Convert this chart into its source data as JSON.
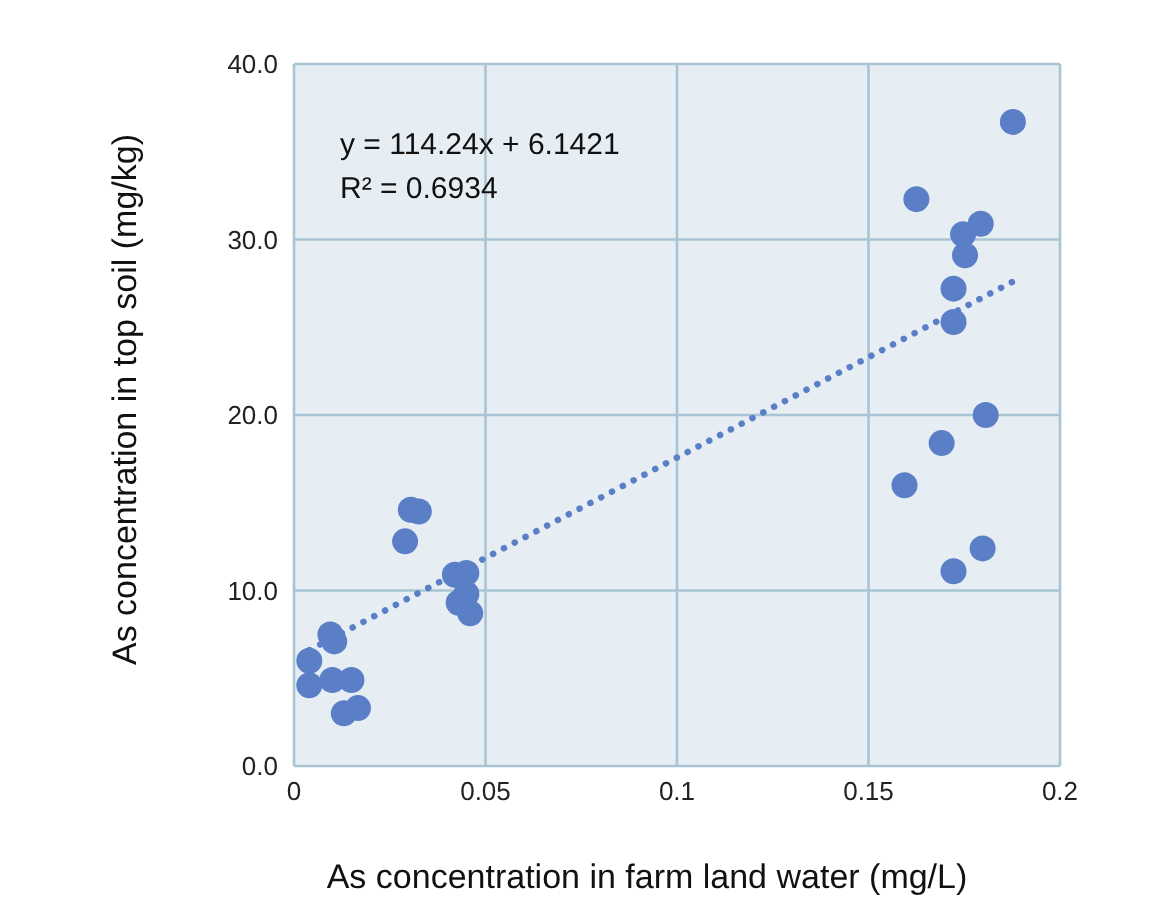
{
  "chart_data": {
    "type": "scatter",
    "xlabel": "As concentration in farm land water (mg/L)",
    "ylabel": "As concentration in top soil (mg/kg)",
    "xlim": [
      0,
      0.2
    ],
    "xticks": [
      0,
      0.05,
      0.1,
      0.15,
      0.2
    ],
    "ylim": [
      0,
      40
    ],
    "yticks": [
      {
        "value": 0,
        "label": "0.0"
      },
      {
        "value": 10,
        "label": "10.0"
      },
      {
        "value": 20,
        "label": "20.0"
      },
      {
        "value": 30,
        "label": "30.0"
      },
      {
        "value": 40,
        "label": "40.0"
      }
    ],
    "grid": true,
    "marker": "circle",
    "annotations": [
      "y = 114.24x + 6.1421",
      "R² = 0.6934"
    ],
    "series": [
      {
        "color": "#5b7fc7",
        "x": [
          0.0305,
          0.0326,
          0.029,
          0.042,
          0.045,
          0.045,
          0.043,
          0.046,
          0.0095,
          0.0105,
          0.004,
          0.004,
          0.01,
          0.015,
          0.013,
          0.0167,
          0.1877,
          0.1625,
          0.1793,
          0.1747,
          0.1752,
          0.1722,
          0.1722,
          0.1806,
          0.1691,
          0.1594,
          0.1798,
          0.1722
        ],
        "values": [
          14.6,
          14.5,
          12.8,
          10.9,
          11.0,
          9.8,
          9.3,
          8.7,
          7.5,
          7.1,
          6.0,
          4.6,
          4.9,
          4.9,
          3.0,
          3.3,
          36.7,
          32.3,
          30.9,
          30.3,
          29.1,
          27.2,
          25.3,
          20.0,
          18.4,
          16.0,
          12.4,
          11.1
        ]
      },
      {
        "type": "line",
        "color": "#5b7fc7",
        "line_style": "dotted",
        "marker": "none",
        "x": [
          0.004,
          0.1877
        ],
        "values": [
          6.6,
          27.6
        ]
      }
    ]
  }
}
